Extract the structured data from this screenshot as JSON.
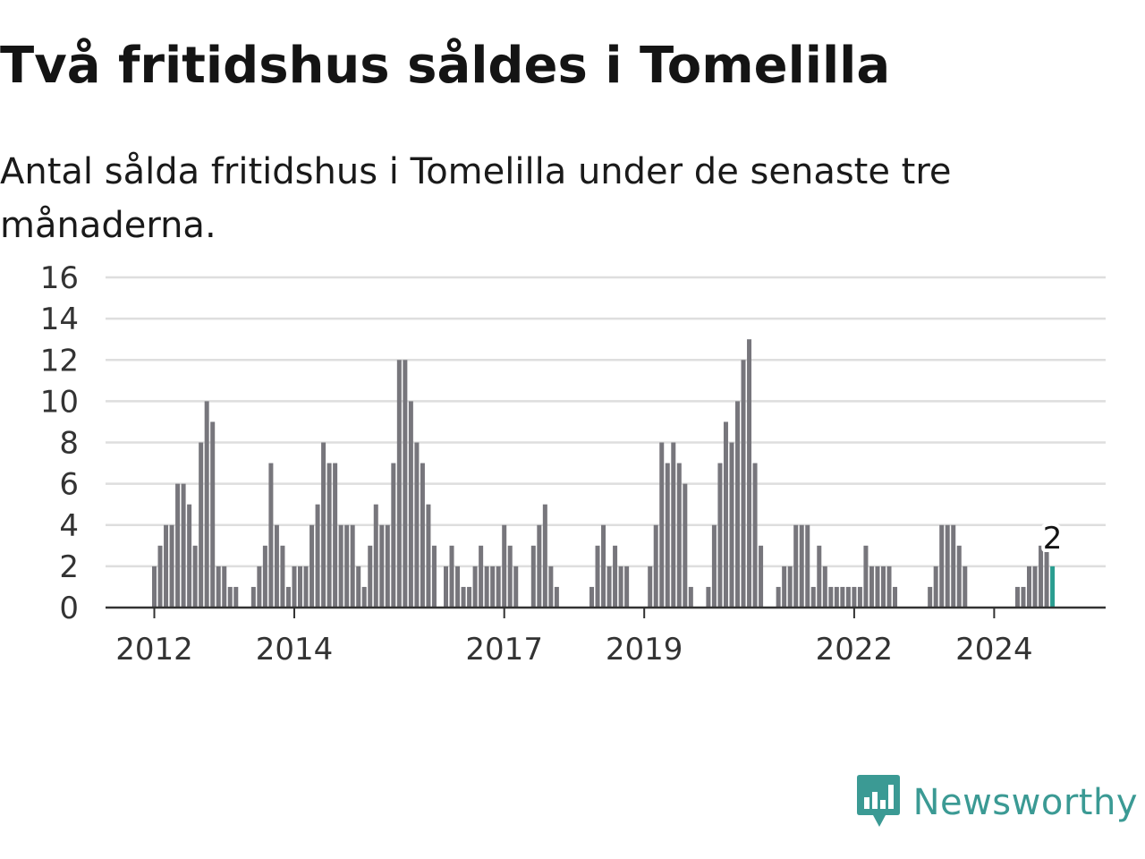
{
  "title": "Två fritidshus såldes i Tomelilla",
  "subtitle": "Antal sålda fritidshus i Tomelilla under de senaste tre månaderna.",
  "brand": {
    "name": "Newsworthy",
    "logo_icon": "bar-chart-speech-bubble-icon"
  },
  "colors": {
    "bar": "#77767c",
    "highlight": "#2a9d90",
    "grid": "#dedede",
    "axis": "#333333",
    "brand": "#3b9a94"
  },
  "chart_data": {
    "type": "bar",
    "title": "Två fritidshus såldes i Tomelilla",
    "subtitle": "Antal sålda fritidshus i Tomelilla under de senaste tre månaderna.",
    "xlabel": "",
    "ylabel": "",
    "ylim": [
      0,
      16
    ],
    "yticks": [
      0,
      2,
      4,
      6,
      8,
      10,
      12,
      14,
      16
    ],
    "x_tick_labels": [
      {
        "label": "2012",
        "index": 0
      },
      {
        "label": "2014",
        "index": 24
      },
      {
        "label": "2017",
        "index": 60
      },
      {
        "label": "2019",
        "index": 84
      },
      {
        "label": "2022",
        "index": 120
      },
      {
        "label": "2024",
        "index": 144
      }
    ],
    "x_tick_note": "index = month offset from the first bar (January 2012)",
    "grid": true,
    "legend": "none",
    "last_value_label": "2",
    "highlight_last": true,
    "values": [
      2,
      3,
      4,
      4,
      6,
      6,
      5,
      3,
      8,
      10,
      9,
      2,
      2,
      1,
      1,
      0,
      0,
      1,
      2,
      3,
      7,
      4,
      3,
      1,
      2,
      2,
      2,
      4,
      5,
      8,
      7,
      7,
      4,
      4,
      4,
      2,
      1,
      3,
      5,
      4,
      4,
      7,
      12,
      12,
      10,
      8,
      7,
      5,
      3,
      0,
      2,
      3,
      2,
      1,
      1,
      2,
      3,
      2,
      2,
      2,
      4,
      3,
      2,
      0,
      0,
      3,
      4,
      5,
      2,
      1,
      0,
      0,
      0,
      0,
      0,
      1,
      3,
      4,
      2,
      3,
      2,
      2,
      0,
      0,
      0,
      2,
      4,
      8,
      7,
      8,
      7,
      6,
      1,
      0,
      0,
      1,
      4,
      7,
      9,
      8,
      10,
      12,
      13,
      7,
      3,
      0,
      0,
      1,
      2,
      2,
      4,
      4,
      4,
      1,
      3,
      2,
      1,
      1,
      1,
      1,
      1,
      1,
      3,
      2,
      2,
      2,
      2,
      1,
      0,
      0,
      0,
      0,
      0,
      1,
      2,
      4,
      4,
      4,
      3,
      2,
      0,
      0,
      0,
      0,
      0,
      0,
      0,
      0,
      1,
      1,
      2,
      2,
      3,
      3,
      2
    ]
  }
}
